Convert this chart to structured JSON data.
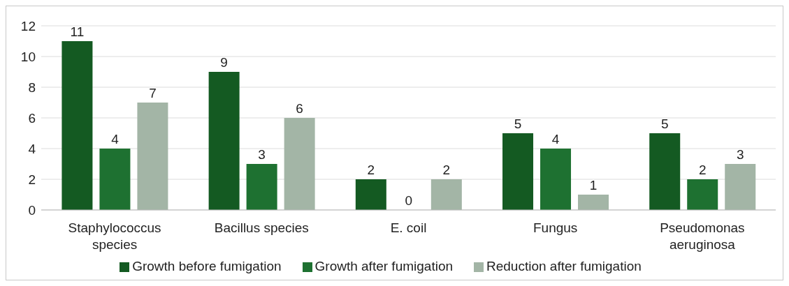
{
  "chart_data": {
    "type": "bar",
    "categories": [
      "Staphylococcus species",
      "Bacillus species",
      "E. coil",
      "Fungus",
      "Pseudomonas aeruginosa"
    ],
    "series": [
      {
        "name": "Growth before fumigation",
        "color": "#145a22",
        "values": [
          11,
          9,
          2,
          5,
          5
        ]
      },
      {
        "name": "Growth after fumigation",
        "color": "#1e7131",
        "values": [
          4,
          3,
          0,
          4,
          2
        ]
      },
      {
        "name": "Reduction after fumigation",
        "color": "#a3b5a6",
        "values": [
          7,
          6,
          2,
          1,
          3
        ]
      }
    ],
    "ylim": [
      0,
      12
    ],
    "yticks": [
      0,
      2,
      4,
      6,
      8,
      10,
      12
    ],
    "grid": "y",
    "legend": "bottom",
    "data_labels": true
  }
}
